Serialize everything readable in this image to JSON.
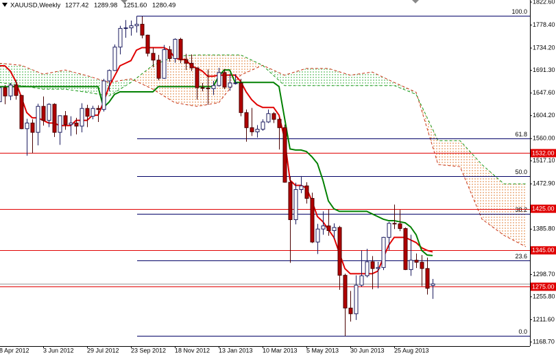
{
  "header": {
    "symbol": "XAUUSD,Weekly",
    "ohlc": [
      "1277.42",
      "1289.98",
      "1251.60",
      "1280.49"
    ]
  },
  "chart_data": {
    "type": "candlestick",
    "categories": [
      "8 Apr 2012",
      null,
      null,
      null,
      null,
      null,
      null,
      null,
      "3 Jun 2012",
      null,
      null,
      null,
      null,
      null,
      null,
      null,
      "29 Jul 2012",
      null,
      null,
      null,
      null,
      null,
      null,
      null,
      "23 Sep 2012",
      null,
      null,
      null,
      null,
      null,
      null,
      null,
      "18 Nov 2012",
      null,
      null,
      null,
      null,
      null,
      null,
      null,
      "13 Jan 2013",
      null,
      null,
      null,
      null,
      null,
      null,
      null,
      "10 Mar 2013",
      null,
      null,
      null,
      null,
      null,
      null,
      null,
      "5 May 2013",
      null,
      null,
      null,
      null,
      null,
      null,
      null,
      "30 Jun 2013",
      null,
      null,
      null,
      null,
      null,
      null,
      null,
      "25 Aug 2013",
      null,
      null,
      null,
      null,
      null,
      null,
      null
    ],
    "open": [
      1631,
      1658,
      1642,
      1663,
      1643,
      1579,
      1590,
      1572,
      1622,
      1595,
      1626,
      1572,
      1604,
      1587,
      1590,
      1584,
      1618,
      1603,
      1618,
      1616,
      1671,
      1691,
      1736,
      1772,
      1773,
      1777,
      1780,
      1759,
      1724,
      1711,
      1676,
      1731,
      1714,
      1751,
      1712,
      1705,
      1696,
      1658,
      1657,
      1656,
      1662,
      1687,
      1659,
      1667,
      1667,
      1610,
      1581,
      1573,
      1578,
      1592,
      1608,
      1597,
      1581,
      1476,
      1404,
      1462,
      1469,
      1445,
      1361,
      1386,
      1392,
      1383,
      1389,
      1297,
      1234,
      1223,
      1278,
      1296,
      1323,
      1310,
      1312,
      1370,
      1397,
      1396,
      1387,
      1308,
      1326,
      1322,
      1310,
      1277.42
    ],
    "high": [
      1677,
      1663,
      1667,
      1673,
      1644,
      1598,
      1597,
      1627,
      1641,
      1628,
      1628,
      1605,
      1613,
      1603,
      1600,
      1628,
      1625,
      1623,
      1624,
      1675,
      1693,
      1741,
      1777,
      1788,
      1787,
      1796,
      1795,
      1760,
      1735,
      1721,
      1740,
      1738,
      1753,
      1754,
      1723,
      1722,
      1697,
      1667,
      1693,
      1671,
      1696,
      1694,
      1685,
      1684,
      1675,
      1616,
      1619,
      1586,
      1597,
      1616,
      1611,
      1600,
      1587,
      1487,
      1475,
      1488,
      1476,
      1456,
      1396,
      1420,
      1424,
      1397,
      1392,
      1300,
      1267,
      1297,
      1345,
      1348,
      1334,
      1323,
      1371,
      1400,
      1433,
      1423,
      1389,
      1375,
      1339,
      1336,
      1331,
      1289.98
    ],
    "low": [
      1628,
      1626,
      1634,
      1635,
      1578,
      1527,
      1532,
      1547,
      1585,
      1582,
      1563,
      1548,
      1577,
      1565,
      1568,
      1572,
      1582,
      1597,
      1592,
      1612,
      1651,
      1690,
      1722,
      1754,
      1758,
      1764,
      1753,
      1718,
      1697,
      1672,
      1675,
      1708,
      1706,
      1705,
      1692,
      1690,
      1635,
      1651,
      1625,
      1644,
      1660,
      1655,
      1652,
      1664,
      1603,
      1554,
      1565,
      1562,
      1575,
      1590,
      1590,
      1539,
      1475,
      1321,
      1395,
      1455,
      1435,
      1359,
      1338,
      1375,
      1373,
      1367,
      1269,
      1180,
      1208,
      1211,
      1275,
      1293,
      1270,
      1272,
      1307,
      1345,
      1386,
      1382,
      1307,
      1296,
      1311,
      1276,
      1260,
      1251.6
    ],
    "close": [
      1658,
      1642,
      1663,
      1643,
      1579,
      1590,
      1572,
      1622,
      1595,
      1626,
      1572,
      1604,
      1587,
      1590,
      1584,
      1618,
      1603,
      1618,
      1616,
      1671,
      1691,
      1736,
      1772,
      1773,
      1777,
      1780,
      1759,
      1724,
      1711,
      1676,
      1731,
      1714,
      1751,
      1712,
      1705,
      1696,
      1658,
      1657,
      1656,
      1662,
      1687,
      1659,
      1667,
      1667,
      1610,
      1581,
      1573,
      1578,
      1592,
      1608,
      1597,
      1581,
      1476,
      1404,
      1462,
      1469,
      1445,
      1361,
      1386,
      1392,
      1383,
      1389,
      1297,
      1234,
      1223,
      1278,
      1296,
      1323,
      1310,
      1312,
      1370,
      1397,
      1396,
      1387,
      1308,
      1326,
      1322,
      1310,
      1272,
      1280.49
    ],
    "up_color": "#ffffff",
    "up_outline": "#1a1a5e",
    "down_color": "#b00000",
    "down_outline": "#4a0000",
    "tenkan": {
      "color": "#e00000",
      "values": [
        1700,
        1700,
        1690,
        1670,
        1640,
        1610,
        1600,
        1600,
        1595,
        1590,
        1590,
        1585,
        1585,
        1585,
        1595,
        1595,
        1595,
        1605,
        1605,
        1630,
        1660,
        1680,
        1700,
        1705,
        1710,
        1730,
        1735,
        1735,
        1735,
        1735,
        1735,
        1730,
        1715,
        1712,
        1712,
        1700,
        1695,
        1690,
        1680,
        1680,
        1682,
        1682,
        1682,
        1682,
        1670,
        1650,
        1635,
        1625,
        1620,
        1620,
        1620,
        1605,
        1560,
        1480,
        1470,
        1470,
        1465,
        1440,
        1410,
        1400,
        1385,
        1370,
        1340,
        1310,
        1300,
        1300,
        1300,
        1300,
        1300,
        1305,
        1330,
        1355,
        1370,
        1370,
        1370,
        1365,
        1360,
        1350,
        1345,
        1342
      ]
    },
    "kijun": {
      "color": "#008000",
      "values": [
        1660,
        1660,
        1660,
        1660,
        1660,
        1660,
        1660,
        1660,
        1660,
        1660,
        1660,
        1660,
        1660,
        1660,
        1660,
        1660,
        1660,
        1660,
        1660,
        1620,
        1630,
        1645,
        1650,
        1650,
        1650,
        1650,
        1650,
        1650,
        1650,
        1660,
        1660,
        1660,
        1660,
        1660,
        1660,
        1660,
        1660,
        1660,
        1660,
        1660,
        1680,
        1692,
        1692,
        1668,
        1668,
        1668,
        1668,
        1668,
        1668,
        1668,
        1668,
        1660,
        1600,
        1540,
        1538,
        1538,
        1535,
        1525,
        1512,
        1480,
        1440,
        1425,
        1420,
        1420,
        1420,
        1420,
        1420,
        1420,
        1415,
        1410,
        1405,
        1402,
        1402,
        1400,
        1398,
        1390,
        1375,
        1345,
        1336,
        1335
      ]
    },
    "cloud": {
      "x": [
        0,
        4,
        8,
        12,
        16,
        20,
        24,
        28,
        32,
        36,
        40,
        44,
        48,
        52,
        56,
        60,
        64,
        68,
        72,
        76,
        80,
        84,
        88,
        92,
        96
      ],
      "span_a": [
        1705,
        1701,
        1684,
        1692,
        1681,
        1668,
        1675,
        1655,
        1629,
        1622,
        1629,
        1682,
        1701,
        1682,
        1695,
        1695,
        1682,
        1688,
        1668,
        1649,
        1510,
        1506,
        1405,
        1374,
        1352
      ],
      "span_b": [
        1668,
        1662,
        1655,
        1655,
        1649,
        1642,
        1668,
        1701,
        1718,
        1721,
        1721,
        1721,
        1701,
        1662,
        1662,
        1662,
        1662,
        1662,
        1662,
        1645,
        1556,
        1556,
        1510,
        1473,
        1473
      ],
      "color_a": "#c83214",
      "color_b": "#1a9a1a",
      "hatch_a_above": "#3cb043",
      "hatch_b_above": "#e0803a"
    },
    "levels": [
      {
        "value": 1532,
        "label": "1532.00"
      },
      {
        "value": 1425,
        "label": "1425.00"
      },
      {
        "value": 1345,
        "label": "1345.00"
      },
      {
        "value": 1275,
        "label": "1275.00"
      }
    ],
    "level_color": "#e00000",
    "fib": {
      "color": "#000066",
      "levels": [
        {
          "value": 1795.9,
          "label": "100.0"
        },
        {
          "value": 1560.8,
          "label": "61.8"
        },
        {
          "value": 1488.2,
          "label": "50.0"
        },
        {
          "value": 1415.6,
          "label": "38.2"
        },
        {
          "value": 1325.7,
          "label": "23.6"
        },
        {
          "value": 1180.5,
          "label": "0.0"
        }
      ]
    },
    "last_price_color": "#999999",
    "ylim": [
      1160.8,
      1826.6
    ],
    "yticks": [
      {
        "value": 1822.6,
        "label": "1822.60"
      },
      {
        "value": 1778.4,
        "label": "1778.40"
      },
      {
        "value": 1734.2,
        "label": "1734.20"
      },
      {
        "value": 1691.3,
        "label": "1691.30"
      },
      {
        "value": 1647.6,
        "label": "1647.60"
      },
      {
        "value": 1604.2,
        "label": "1604.20"
      },
      {
        "value": 1560,
        "label": "1560.00"
      },
      {
        "value": 1517.1,
        "label": "1517.10"
      },
      {
        "value": 1472.9,
        "label": "1472.90"
      },
      {
        "value": 1385.8,
        "label": "1385.80"
      },
      {
        "value": 1298.7,
        "label": "1298.70"
      },
      {
        "value": 1255.8,
        "label": "1255.80"
      },
      {
        "value": 1211.6,
        "label": "1211.60"
      },
      {
        "value": 1168.7,
        "label": "1168.70"
      }
    ]
  }
}
